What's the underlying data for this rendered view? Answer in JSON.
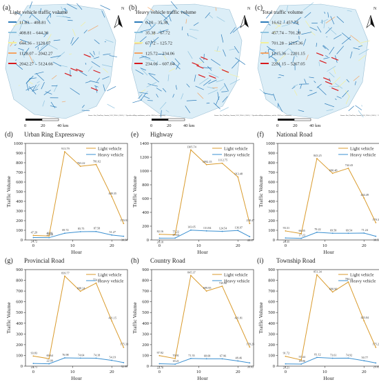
{
  "maps": [
    {
      "panel": "(a)",
      "title": "Light vehicle traffic volume",
      "legend": [
        {
          "label": "11.83 – 408.81",
          "color": "#2b7bb9"
        },
        {
          "label": "408.81 – 644.36",
          "color": "#8fc3df"
        },
        {
          "label": "644.36 – 1128.07",
          "color": "#f3f09a"
        },
        {
          "label": "1128.07 – 2042.27",
          "color": "#f4a361"
        },
        {
          "label": "2042.27 – 5124.66",
          "color": "#d7191c"
        }
      ]
    },
    {
      "panel": "(b)",
      "title": "Heavy vehicle traffic volume",
      "legend": [
        {
          "label": "0.10 – 35.38",
          "color": "#2b7bb9"
        },
        {
          "label": "35.38 – 67.72",
          "color": "#8fc3df"
        },
        {
          "label": "67.72 – 125.72",
          "color": "#f3f09a"
        },
        {
          "label": "125.72 – 234.06",
          "color": "#f4a361"
        },
        {
          "label": "234.06 – 607.04",
          "color": "#d7191c"
        }
      ]
    },
    {
      "panel": "(c)",
      "title": "Total traffic volume",
      "legend": [
        {
          "label": "16.62 – 457.74",
          "color": "#2b7bb9"
        },
        {
          "label": "457.74 – 701.28",
          "color": "#8fc3df"
        },
        {
          "label": "701.28 – 1215.36",
          "color": "#f3f09a"
        },
        {
          "label": "1215.36 – 2201.15",
          "color": "#f4a361"
        },
        {
          "label": "2201.15 – 5267.05",
          "color": "#d7191c"
        }
      ]
    }
  ],
  "map_common": {
    "north": "N",
    "scale_ticks": [
      "0",
      "20",
      "40 km"
    ],
    "source_text": "Source: Esri, TomTom, Garmin, FAO, NOAA, USGS, © OpenStreetMap contributors, and the GIS User Community"
  },
  "series_names": [
    "Light vehicle",
    "Heavy vehicle"
  ],
  "series_colors": [
    "#d99a2b",
    "#3a8fd0"
  ],
  "chart_data": [
    {
      "type": "line",
      "panel": "(d)",
      "title": "Urban Ring Expressway",
      "xlabel": "Hour",
      "ylabel": "Traffic Volume",
      "xlim": [
        -2,
        24
      ],
      "xticks": [
        0,
        10,
        20
      ],
      "ylim": [
        0,
        1000
      ],
      "yticks": [
        0,
        100,
        200,
        300,
        400,
        500,
        600,
        700,
        800,
        900,
        1000
      ],
      "legend": "top-right",
      "series": [
        {
          "name": "Light vehicle",
          "x": [
            0,
            4,
            8,
            12,
            16,
            20,
            23
          ],
          "values": [
            47.29,
            40.81,
            913.79,
            763.22,
            781.62,
            449.35,
            170.91
          ],
          "labels": [
            "47.29",
            "40.81",
            "913.79",
            "763.22",
            "781.62",
            "449.35",
            "170.91"
          ]
        },
        {
          "name": "Heavy vehicle",
          "x": [
            0,
            4,
            8,
            12,
            16,
            20,
            23
          ],
          "values": [
            24.72,
            23.68,
            69.72,
            85.75,
            87.58,
            51.27,
            38.54
          ],
          "labels": [
            "24.72",
            "23.68",
            "69.72",
            "85.75",
            "87.58",
            "51.27",
            "38.54"
          ]
        }
      ]
    },
    {
      "type": "line",
      "panel": "(e)",
      "title": "Highway",
      "xlabel": "Hour",
      "ylabel": "Traffic Volume",
      "xlim": [
        -2,
        24
      ],
      "xticks": [
        0,
        10,
        20
      ],
      "ylim": [
        0,
        1400
      ],
      "yticks": [
        0,
        200,
        400,
        600,
        800,
        1000,
        1200,
        1400
      ],
      "legend": "top-right",
      "series": [
        {
          "name": "Light vehicle",
          "x": [
            0,
            4,
            8,
            12,
            16,
            20,
            23
          ],
          "values": [
            82.16,
            75.22,
            1305.74,
            1092.15,
            1112.75,
            913.48,
            238.47
          ],
          "labels": [
            "82.16",
            "75.22",
            "1305.74",
            "1092.15",
            "1112.75",
            "913.48",
            "238.47"
          ]
        },
        {
          "name": "Heavy vehicle",
          "x": [
            0,
            4,
            8,
            12,
            16,
            20,
            23
          ],
          "values": [
            26.18,
            27.64,
            143.05,
            131.84,
            124.54,
            136.97,
            48.17
          ],
          "labels": [
            "26.18",
            "27.64",
            "143.05",
            "131.84",
            "124.54",
            "136.97",
            "48.17"
          ]
        }
      ]
    },
    {
      "type": "line",
      "panel": "(f)",
      "title": "National Road",
      "xlabel": "Hour",
      "ylabel": "Traffic Volume",
      "xlim": [
        -2,
        24
      ],
      "xticks": [
        0,
        10,
        20
      ],
      "ylim": [
        0,
        1000
      ],
      "yticks": [
        0,
        100,
        200,
        300,
        400,
        500,
        600,
        700,
        800,
        900,
        1000
      ],
      "legend": "top-right",
      "series": [
        {
          "name": "Light vehicle",
          "x": [
            0,
            4,
            8,
            12,
            16,
            20,
            23
          ],
          "values": [
            93.31,
            66.05,
            843.25,
            690.48,
            742.43,
            434.49,
            179.32
          ],
          "labels": [
            "93.31",
            "66.05",
            "843.25",
            "690.48",
            "742.43",
            "434.49",
            "179.32"
          ]
        },
        {
          "name": "Heavy vehicle",
          "x": [
            0,
            4,
            8,
            12,
            16,
            20,
            23
          ],
          "values": [
            20.35,
            17.23,
            79.22,
            69.58,
            69.54,
            71.24,
            38.53
          ],
          "labels": [
            "20.35",
            "17.23",
            "79.22",
            "69.58",
            "69.54",
            "71.24",
            "38.53"
          ]
        }
      ]
    },
    {
      "type": "line",
      "panel": "(g)",
      "title": "Provincial Road",
      "xlabel": "Hour",
      "ylabel": "Traffic Volume",
      "xlim": [
        -2,
        24
      ],
      "xticks": [
        0,
        10,
        20
      ],
      "ylim": [
        0,
        900
      ],
      "yticks": [
        0,
        100,
        200,
        300,
        400,
        500,
        600,
        700,
        800,
        900
      ],
      "legend": "top-right",
      "series": [
        {
          "name": "Light vehicle",
          "x": [
            0,
            4,
            8,
            12,
            16,
            20,
            23
          ],
          "values": [
            93.83,
            69.64,
            839.77,
            698.24,
            774.15,
            421.15,
            175.33
          ],
          "labels": [
            "93.83",
            "69.64",
            "839.77",
            "698.24",
            "774.15",
            "421.15",
            "175.33"
          ]
        },
        {
          "name": "Heavy vehicle",
          "x": [
            0,
            4,
            8,
            12,
            16,
            20,
            23
          ],
          "values": [
            24.71,
            22.09,
            76.98,
            74.64,
            74.18,
            54.19,
            32.99
          ],
          "labels": [
            "24.71",
            "22.09",
            "76.98",
            "74.64",
            "74.18",
            "54.19",
            "32.99"
          ]
        }
      ]
    },
    {
      "type": "line",
      "panel": "(h)",
      "title": "Country Road",
      "xlabel": "Hour",
      "ylabel": "Traffic Volume",
      "xlim": [
        -2,
        24
      ],
      "xticks": [
        0,
        10,
        20
      ],
      "ylim": [
        0,
        900
      ],
      "yticks": [
        0,
        100,
        200,
        300,
        400,
        500,
        600,
        700,
        800,
        900
      ],
      "legend": "top-right",
      "series": [
        {
          "name": "Light vehicle",
          "x": [
            0,
            4,
            8,
            12,
            16,
            20,
            23
          ],
          "values": [
            97.92,
            70.91,
            845.37,
            699.95,
            745.9,
            421.81,
            178.25
          ],
          "labels": [
            "97.92",
            "70.91",
            "845.37",
            "699.95",
            "745.90",
            "421.81",
            "178.25"
          ]
        },
        {
          "name": "Heavy vehicle",
          "x": [
            0,
            4,
            8,
            12,
            16,
            20,
            23
          ],
          "values": [
            22.7,
            18.21,
            71.33,
            68.68,
            67.96,
            48.46,
            30.43
          ],
          "labels": [
            "22.70",
            "18.21",
            "71.33",
            "68.68",
            "67.96",
            "48.46",
            "30.43"
          ]
        }
      ]
    },
    {
      "type": "line",
      "panel": "(i)",
      "title": "Township Road",
      "xlabel": "Hour",
      "ylabel": "Traffic Volume",
      "xlim": [
        -2,
        24
      ],
      "xticks": [
        0,
        10,
        20
      ],
      "ylim": [
        0,
        900
      ],
      "yticks": [
        0,
        100,
        200,
        300,
        400,
        500,
        600,
        700,
        800,
        900
      ],
      "legend": "top-right",
      "series": [
        {
          "name": "Light vehicle",
          "x": [
            0,
            4,
            8,
            12,
            16,
            20,
            23
          ],
          "values": [
            91.72,
            57.44,
            851.34,
            690.96,
            784.11,
            423.04,
            175.27
          ],
          "labels": [
            "91.72",
            "57.44",
            "851.34",
            "690.96",
            "784.11",
            "423.04",
            "175.27"
          ]
        },
        {
          "name": "Heavy vehicle",
          "x": [
            0,
            4,
            8,
            12,
            16,
            20,
            23
          ],
          "values": [
            21.21,
            18.96,
            81.12,
            73.61,
            74.92,
            50.77,
            29.69
          ],
          "labels": [
            "21.21",
            "18.96",
            "81.12",
            "73.61",
            "74.92",
            "50.77",
            "29.69"
          ]
        }
      ]
    }
  ]
}
